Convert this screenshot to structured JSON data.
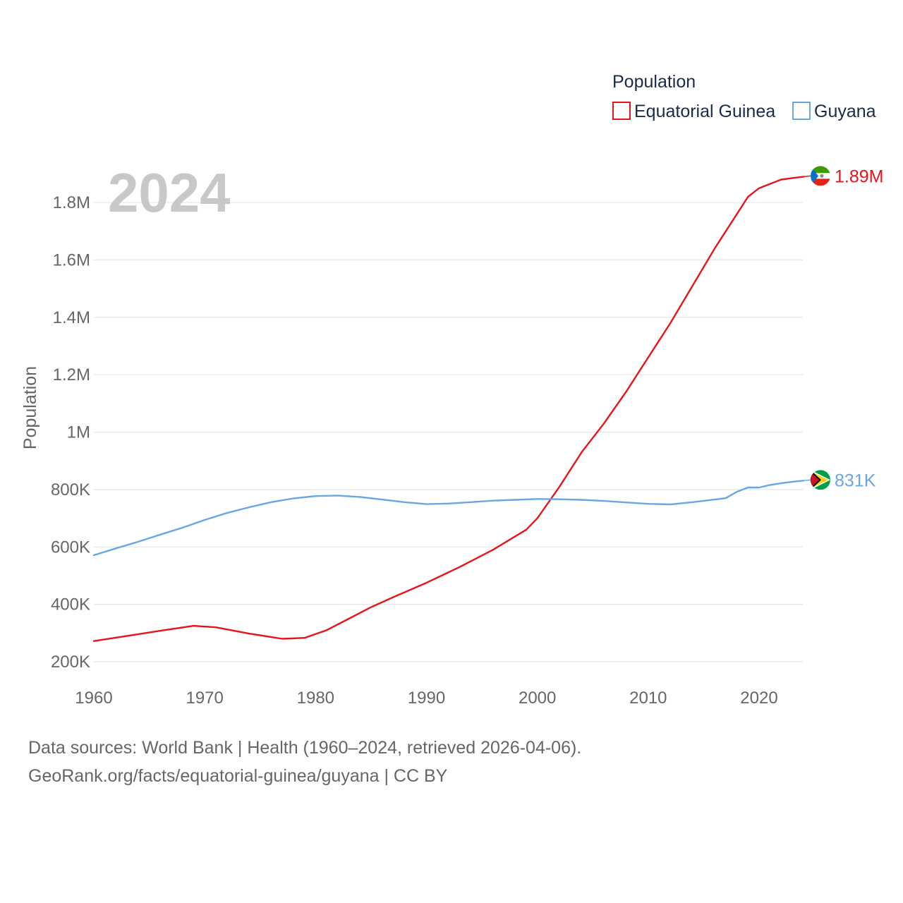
{
  "chart_data": {
    "type": "line",
    "title": "",
    "year_label": "2024",
    "xlabel": "",
    "ylabel": "Population",
    "xlim": [
      1960,
      2024
    ],
    "ylim": [
      200000,
      1900000
    ],
    "x_ticks": [
      1960,
      1970,
      1980,
      1990,
      2000,
      2010,
      2020
    ],
    "x_tick_labels": [
      "1960",
      "1970",
      "1980",
      "1990",
      "2000",
      "2010",
      "2020"
    ],
    "y_ticks": [
      200000,
      400000,
      600000,
      800000,
      1000000,
      1200000,
      1400000,
      1600000,
      1800000
    ],
    "y_tick_labels": [
      "200K",
      "400K",
      "600K",
      "800K",
      "1M",
      "1.2M",
      "1.4M",
      "1.6M",
      "1.8M"
    ],
    "legend": {
      "title": "Population",
      "position": "top-right",
      "items": [
        "Equatorial Guinea",
        "Guyana"
      ]
    },
    "series": [
      {
        "name": "Equatorial Guinea",
        "color": "#e8141b",
        "end_label": "1.89M",
        "flag_icon": "equatorial-guinea-flag-icon",
        "x": [
          1960,
          1963,
          1966,
          1969,
          1971,
          1974,
          1977,
          1979,
          1981,
          1983,
          1985,
          1987,
          1990,
          1993,
          1996,
          1999,
          2000,
          2002,
          2004,
          2006,
          2008,
          2010,
          2012,
          2014,
          2016,
          2018,
          2019,
          2020,
          2022,
          2024
        ],
        "values": [
          272000,
          290000,
          308000,
          325000,
          320000,
          298000,
          280000,
          283000,
          310000,
          350000,
          390000,
          425000,
          475000,
          530000,
          590000,
          660000,
          700000,
          810000,
          930000,
          1030000,
          1140000,
          1260000,
          1380000,
          1510000,
          1640000,
          1760000,
          1820000,
          1850000,
          1880000,
          1890000
        ]
      },
      {
        "name": "Guyana",
        "color": "#69a6e4",
        "end_label": "831K",
        "flag_icon": "guyana-flag-icon",
        "x": [
          1960,
          1962,
          1964,
          1966,
          1968,
          1970,
          1972,
          1974,
          1976,
          1978,
          1980,
          1982,
          1984,
          1986,
          1988,
          1990,
          1992,
          1994,
          1996,
          1998,
          2000,
          2002,
          2004,
          2006,
          2008,
          2010,
          2012,
          2014,
          2016,
          2017,
          2018,
          2019,
          2020,
          2021,
          2022,
          2023,
          2024
        ],
        "values": [
          571000,
          595000,
          618000,
          643000,
          667000,
          694000,
          718000,
          738000,
          756000,
          769000,
          777000,
          779000,
          774000,
          765000,
          756000,
          749000,
          751000,
          756000,
          761000,
          764000,
          767000,
          766000,
          764000,
          760000,
          755000,
          750000,
          748000,
          756000,
          765000,
          770000,
          792000,
          807000,
          807000,
          816000,
          822000,
          827000,
          831000
        ]
      }
    ],
    "source_lines": [
      "Data sources: World Bank | Health (1960–2024, retrieved 2026-04-06).",
      "GeoRank.org/facts/equatorial-guinea/guyana | CC BY"
    ]
  }
}
